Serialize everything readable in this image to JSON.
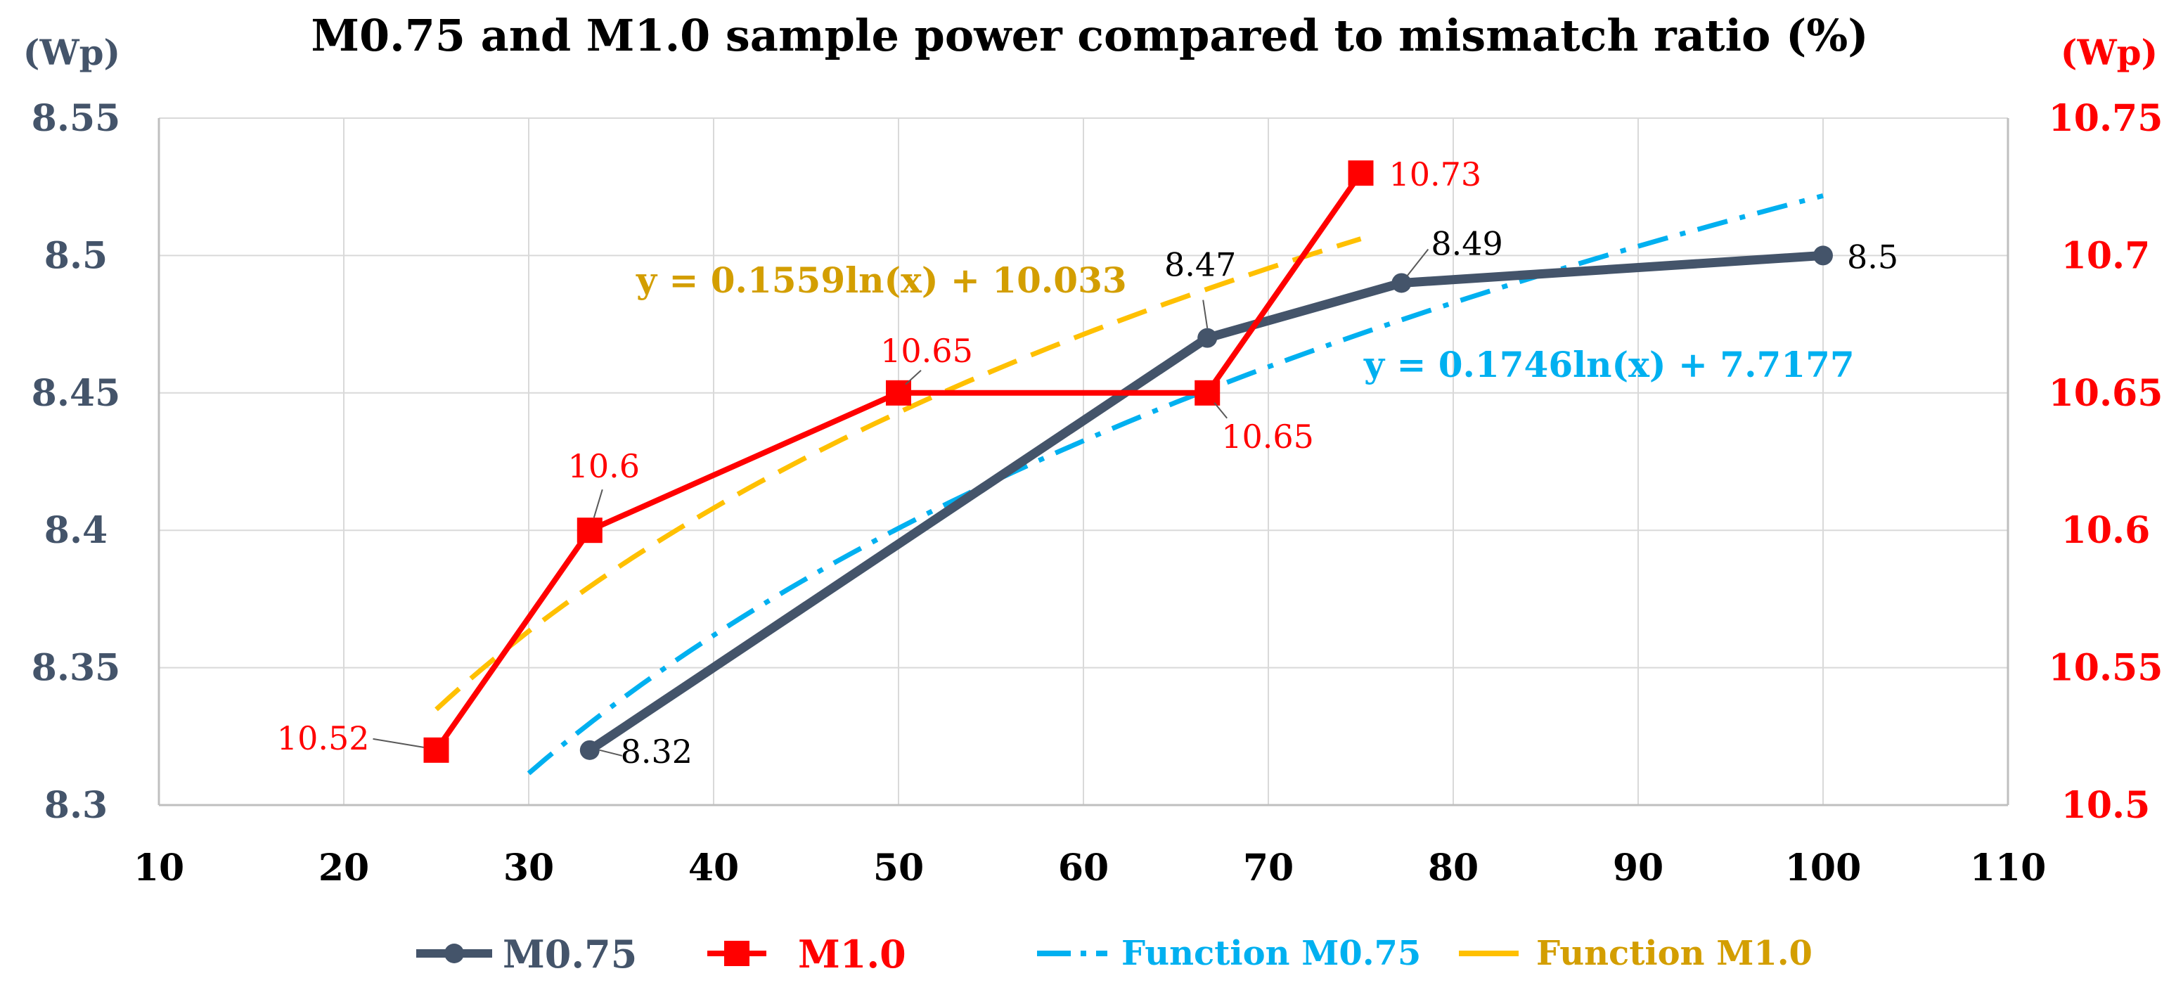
{
  "chart_data": {
    "type": "line",
    "title": "M0.75 and M1.0 sample power compared to mismatch ratio (%)",
    "left_unit": "(Wp)",
    "right_unit": "(Wp)",
    "grid": true,
    "legend_position": "bottom",
    "x_axis": {
      "range": [
        10,
        110
      ],
      "ticks": [
        "10",
        "20",
        "30",
        "40",
        "50",
        "60",
        "70",
        "80",
        "90",
        "100",
        "110"
      ]
    },
    "y_left": {
      "range": [
        8.3,
        8.55
      ],
      "ticks": [
        "8.3",
        "8.35",
        "8.4",
        "8.45",
        "8.5",
        "8.55"
      ],
      "color": "#44546A"
    },
    "y_right": {
      "range": [
        10.5,
        10.75
      ],
      "ticks": [
        "10.5",
        "10.55",
        "10.6",
        "10.65",
        "10.7",
        "10.75"
      ],
      "color": "#FF0000"
    },
    "series": [
      {
        "name": "M0.75",
        "axis": "left",
        "color": "#44546A",
        "marker": "circle",
        "points": [
          {
            "x": 33.3,
            "y": 8.32,
            "label": "8.32"
          },
          {
            "x": 66.7,
            "y": 8.47,
            "label": "8.47"
          },
          {
            "x": 77.2,
            "y": 8.49,
            "label": "8.49"
          },
          {
            "x": 100,
            "y": 8.5,
            "label": "8.5"
          }
        ]
      },
      {
        "name": "M1.0",
        "axis": "right",
        "color": "#FF0000",
        "marker": "square",
        "points": [
          {
            "x": 25,
            "y": 10.52,
            "label": "10.52"
          },
          {
            "x": 33.3,
            "y": 10.6,
            "label": "10.6"
          },
          {
            "x": 50,
            "y": 10.65,
            "label": "10.65"
          },
          {
            "x": 66.7,
            "y": 10.65,
            "label": "10.65"
          },
          {
            "x": 75,
            "y": 10.73,
            "label": "10.73"
          }
        ]
      }
    ],
    "trendlines": [
      {
        "name": "Function M0.75",
        "axis": "left",
        "color": "#00B0F0",
        "dash": "dash-dot",
        "equation": "y = 0.1746ln(x) + 7.7177",
        "a": 0.1746,
        "b": 7.7177,
        "x_range": [
          30,
          100
        ]
      },
      {
        "name": "Function M1.0",
        "axis": "right",
        "color": "#FFC000",
        "equation_color": "#D39E00",
        "dash": "dash",
        "equation": "y = 0.1559ln(x) + 10.033",
        "a": 0.1559,
        "b": 10.033,
        "x_range": [
          25,
          75
        ]
      }
    ]
  }
}
